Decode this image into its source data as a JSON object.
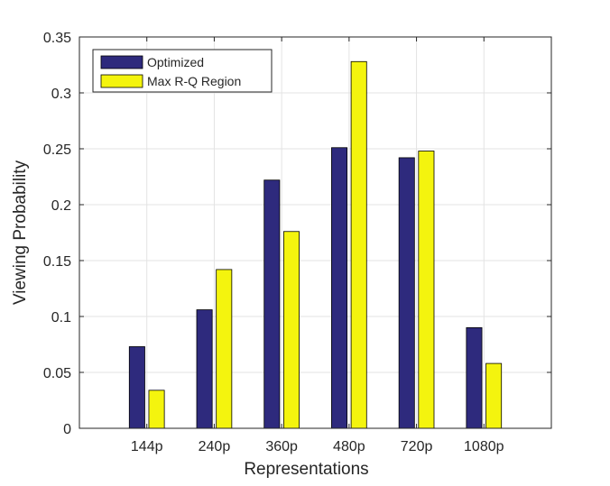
{
  "chart_data": {
    "type": "bar",
    "categories": [
      "144p",
      "240p",
      "360p",
      "480p",
      "720p",
      "1080p"
    ],
    "series": [
      {
        "name": "Optimized",
        "values": [
          0.073,
          0.106,
          0.222,
          0.251,
          0.242,
          0.09
        ],
        "color": "#2e2a7d"
      },
      {
        "name": "Max R-Q Region",
        "values": [
          0.034,
          0.142,
          0.176,
          0.328,
          0.248,
          0.058
        ],
        "color": "#f4f40e"
      }
    ],
    "title": "",
    "xlabel": "Representations",
    "ylabel": "Viewing Probability",
    "ylim": [
      0,
      0.35
    ],
    "yticks": [
      0,
      0.05,
      0.1,
      0.15,
      0.2,
      0.25,
      0.3,
      0.35
    ],
    "ytick_labels": [
      "0",
      "0.05",
      "0.1",
      "0.15",
      "0.2",
      "0.25",
      "0.3",
      "0.35"
    ],
    "grid": true,
    "legend_position": "top-left"
  }
}
